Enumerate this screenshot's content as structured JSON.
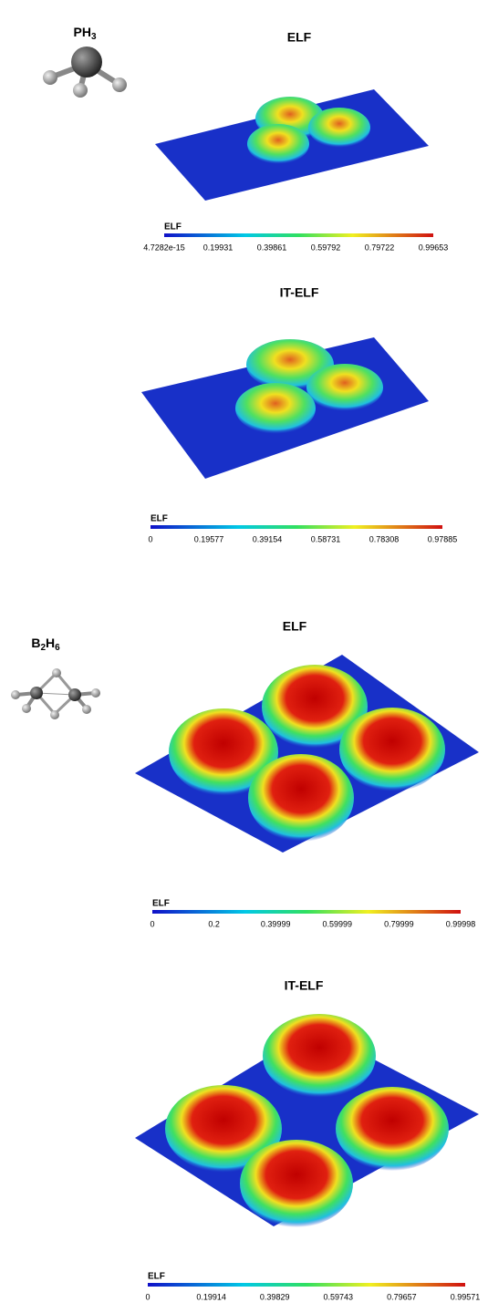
{
  "molecules": [
    {
      "formula": [
        "PH",
        "3"
      ],
      "panels": [
        {
          "title": "ELF",
          "colorbar": {
            "label": "ELF",
            "ticks": [
              "4.7282e-15",
              "0.19931",
              "0.39861",
              "0.59792",
              "0.79722",
              "0.99653"
            ]
          }
        },
        {
          "title": "IT-ELF",
          "colorbar": {
            "label": "ELF",
            "ticks": [
              "0",
              "0.19577",
              "0.39154",
              "0.58731",
              "0.78308",
              "0.97885"
            ]
          }
        }
      ]
    },
    {
      "formula": [
        "B",
        "2",
        "H",
        "6"
      ],
      "panels": [
        {
          "title": "ELF",
          "colorbar": {
            "label": "ELF",
            "ticks": [
              "0",
              "0.2",
              "0.39999",
              "0.59999",
              "0.79999",
              "0.99998"
            ]
          }
        },
        {
          "title": "IT-ELF",
          "colorbar": {
            "label": "ELF",
            "ticks": [
              "0",
              "0.19914",
              "0.39829",
              "0.59743",
              "0.79657",
              "0.99571"
            ]
          }
        }
      ]
    }
  ]
}
